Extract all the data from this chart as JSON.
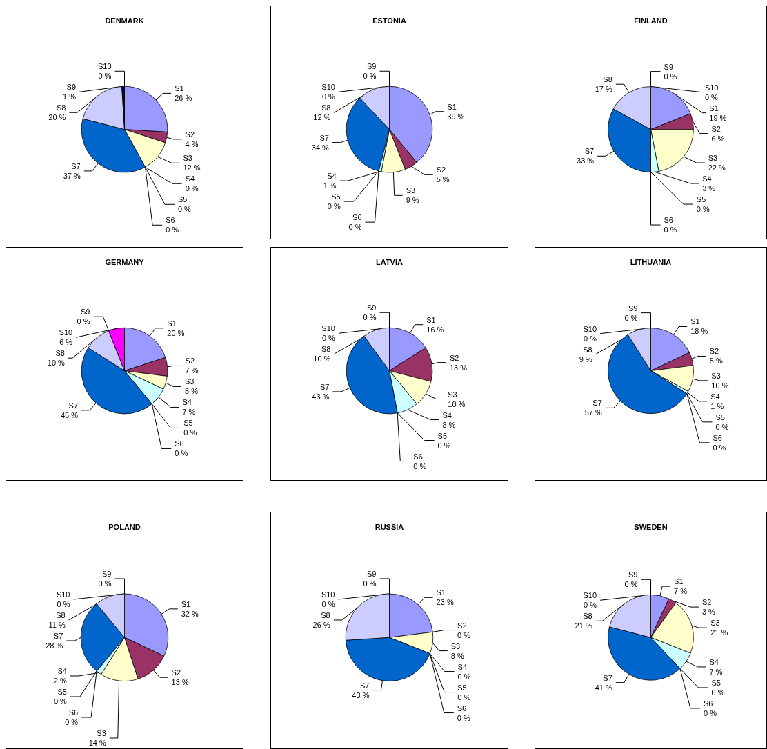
{
  "chart_data": [
    {
      "type": "pie",
      "title": "DENMARK",
      "categories": [
        "S1",
        "S2",
        "S3",
        "S4",
        "S5",
        "S6",
        "S7",
        "S8",
        "S9",
        "S10"
      ],
      "values": [
        26,
        4,
        12,
        0,
        0,
        0,
        37,
        20,
        1,
        0
      ],
      "value_labels": [
        "26 %",
        "4 %",
        "12 %",
        "0 %",
        "0 %",
        "0 %",
        "37 %",
        "20 %",
        "1 %",
        "0 %"
      ],
      "colors": [
        "#9999ff",
        "#993366",
        "#ffffcc",
        "#ccffff",
        "#660066",
        "#ff8080",
        "#0066cc",
        "#ccccff",
        "#000080",
        "#ff00ff"
      ]
    },
    {
      "type": "pie",
      "title": "ESTONIA",
      "categories": [
        "S1",
        "S2",
        "S3",
        "S4",
        "S5",
        "S6",
        "S7",
        "S8",
        "S9",
        "S10"
      ],
      "values": [
        39,
        5,
        9,
        1,
        0,
        0,
        34,
        12,
        0,
        0
      ],
      "value_labels": [
        "39 %",
        "5 %",
        "9 %",
        "1 %",
        "0 %",
        "0 %",
        "34 %",
        "12 %",
        "0 %",
        "0 %"
      ],
      "colors": [
        "#9999ff",
        "#993366",
        "#ffffcc",
        "#ccffff",
        "#660066",
        "#ff8080",
        "#0066cc",
        "#ccccff",
        "#000080",
        "#ff00ff"
      ]
    },
    {
      "type": "pie",
      "title": "FINLAND",
      "categories": [
        "S1",
        "S2",
        "S3",
        "S4",
        "S5",
        "S6",
        "S7",
        "S8",
        "S9",
        "S10"
      ],
      "values": [
        19,
        6,
        22,
        3,
        0,
        0,
        33,
        17,
        0,
        0
      ],
      "value_labels": [
        "19 %",
        "6 %",
        "22 %",
        "3 %",
        "0 %",
        "0 %",
        "33 %",
        "17 %",
        "0 %",
        "0 %"
      ],
      "colors": [
        "#9999ff",
        "#993366",
        "#ffffcc",
        "#ccffff",
        "#660066",
        "#ff8080",
        "#0066cc",
        "#ccccff",
        "#000080",
        "#ff00ff"
      ]
    },
    {
      "type": "pie",
      "title": "GERMANY",
      "categories": [
        "S1",
        "S2",
        "S3",
        "S4",
        "S5",
        "S6",
        "S7",
        "S8",
        "S9",
        "S10"
      ],
      "values": [
        20,
        7,
        5,
        7,
        0,
        0,
        45,
        10,
        0,
        6
      ],
      "value_labels": [
        "20 %",
        "7 %",
        "5 %",
        "7 %",
        "0 %",
        "0 %",
        "45 %",
        "10 %",
        "0 %",
        "6 %"
      ],
      "colors": [
        "#9999ff",
        "#993366",
        "#ffffcc",
        "#ccffff",
        "#660066",
        "#ff8080",
        "#0066cc",
        "#ccccff",
        "#000080",
        "#ff00ff"
      ]
    },
    {
      "type": "pie",
      "title": "LATVIA",
      "categories": [
        "S1",
        "S2",
        "S3",
        "S4",
        "S5",
        "S6",
        "S7",
        "S8",
        "S9",
        "S10"
      ],
      "values": [
        16,
        13,
        10,
        8,
        0,
        0,
        43,
        10,
        0,
        0
      ],
      "value_labels": [
        "16 %",
        "13 %",
        "10 %",
        "8 %",
        "0 %",
        "0 %",
        "43 %",
        "10 %",
        "0 %",
        "0 %"
      ],
      "colors": [
        "#9999ff",
        "#993366",
        "#ffffcc",
        "#ccffff",
        "#660066",
        "#ff8080",
        "#0066cc",
        "#ccccff",
        "#000080",
        "#ff00ff"
      ]
    },
    {
      "type": "pie",
      "title": "LITHUANIA",
      "categories": [
        "S1",
        "S2",
        "S3",
        "S4",
        "S5",
        "S6",
        "S7",
        "S8",
        "S9",
        "S10"
      ],
      "values": [
        18,
        5,
        10,
        1,
        0,
        0,
        57,
        9,
        0,
        0
      ],
      "value_labels": [
        "18 %",
        "5 %",
        "10 %",
        "1 %",
        "0 %",
        "0 %",
        "57 %",
        "9 %",
        "0 %",
        "0 %"
      ],
      "colors": [
        "#9999ff",
        "#993366",
        "#ffffcc",
        "#ccffff",
        "#660066",
        "#ff8080",
        "#0066cc",
        "#ccccff",
        "#000080",
        "#ff00ff"
      ]
    },
    {
      "type": "pie",
      "title": "POLAND",
      "categories": [
        "S1",
        "S2",
        "S3",
        "S4",
        "S5",
        "S6",
        "S7",
        "S8",
        "S9",
        "S10"
      ],
      "values": [
        32,
        13,
        14,
        2,
        0,
        0,
        28,
        11,
        0,
        0
      ],
      "value_labels": [
        "32 %",
        "13 %",
        "14 %",
        "2 %",
        "0 %",
        "0 %",
        "28 %",
        "11 %",
        "0 %",
        "0 %"
      ],
      "colors": [
        "#9999ff",
        "#993366",
        "#ffffcc",
        "#ccffff",
        "#660066",
        "#ff8080",
        "#0066cc",
        "#ccccff",
        "#000080",
        "#ff00ff"
      ]
    },
    {
      "type": "pie",
      "title": "RUSSIA",
      "categories": [
        "S1",
        "S2",
        "S3",
        "S4",
        "S5",
        "S6",
        "S7",
        "S8",
        "S9",
        "S10"
      ],
      "values": [
        23,
        0,
        8,
        0,
        0,
        0,
        43,
        26,
        0,
        0
      ],
      "value_labels": [
        "23 %",
        "0 %",
        "8 %",
        "0 %",
        "0 %",
        "0 %",
        "43 %",
        "26 %",
        "0 %",
        "0 %"
      ],
      "colors": [
        "#9999ff",
        "#993366",
        "#ffffcc",
        "#ccffff",
        "#660066",
        "#ff8080",
        "#0066cc",
        "#ccccff",
        "#000080",
        "#ff00ff"
      ]
    },
    {
      "type": "pie",
      "title": "SWEDEN",
      "categories": [
        "S1",
        "S2",
        "S3",
        "S4",
        "S5",
        "S6",
        "S7",
        "S8",
        "S9",
        "S10"
      ],
      "values": [
        7,
        3,
        21,
        7,
        0,
        0,
        41,
        21,
        0,
        0
      ],
      "value_labels": [
        "7 %",
        "3 %",
        "21 %",
        "7 %",
        "0 %",
        "0 %",
        "41 %",
        "21 %",
        "0 %",
        "0 %"
      ],
      "colors": [
        "#9999ff",
        "#993366",
        "#ffffcc",
        "#ccffff",
        "#660066",
        "#ff8080",
        "#0066cc",
        "#ccccff",
        "#000080",
        "#ff00ff"
      ]
    }
  ]
}
